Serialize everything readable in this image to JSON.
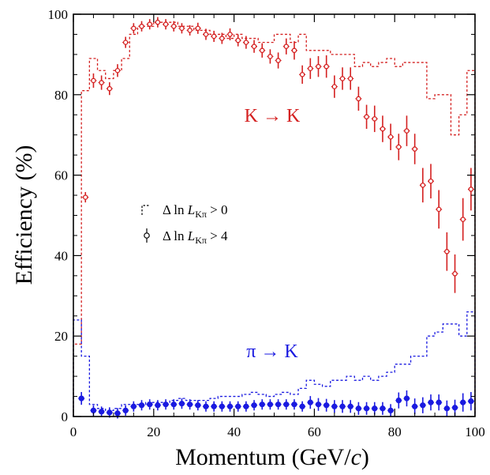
{
  "chart_data": [
    {
      "type": "line",
      "xlabel_main": "Momentum  (GeV/",
      "xlabel_italic": "c",
      "xlabel_end": ")",
      "ylabel": "Efficiency  (%)",
      "xlim": [
        0,
        100
      ],
      "ylim": [
        0,
        100
      ],
      "x_ticks": [
        "0",
        "20",
        "40",
        "60",
        "80",
        "100"
      ],
      "y_ticks": [
        "0",
        "20",
        "40",
        "60",
        "80",
        "100"
      ],
      "annotations": {
        "k_to_k": "K → K",
        "pi_to_k": "π → K"
      },
      "legend": [
        {
          "prefix": "Δ ln ",
          "var": "L",
          "sub": "Kπ",
          "suffix": " > 0",
          "style": "dashed-histogram"
        },
        {
          "prefix": "Δ ln ",
          "var": "L",
          "sub": "Kπ",
          "suffix": " > 4",
          "style": "points-with-errors"
        }
      ],
      "colors": {
        "k_to_k": "#d42020",
        "pi_to_k": "#1a1ae0"
      },
      "bin_edges": [
        0,
        2,
        4,
        6,
        8,
        10,
        12,
        14,
        16,
        18,
        20,
        22,
        24,
        26,
        28,
        30,
        32,
        34,
        36,
        38,
        40,
        42,
        44,
        46,
        48,
        50,
        52,
        54,
        56,
        58,
        60,
        62,
        64,
        66,
        68,
        70,
        72,
        74,
        76,
        78,
        80,
        82,
        84,
        86,
        88,
        90,
        92,
        94,
        96,
        98,
        100
      ],
      "series": [
        {
          "key": "k_to_k_hist",
          "style": "dashed-histogram",
          "color": "#d42020",
          "values": [
            18,
            81,
            89,
            86,
            84,
            86,
            89,
            95,
            97,
            97,
            98,
            98,
            98,
            97,
            97,
            96,
            96,
            95,
            95,
            94,
            95,
            94,
            94,
            93,
            93,
            95,
            95,
            93,
            95,
            91,
            91,
            91,
            90,
            90,
            90,
            87,
            88,
            87,
            88,
            89,
            87,
            88,
            88,
            88,
            79,
            80,
            80,
            70,
            75,
            86
          ]
        },
        {
          "key": "k_to_k_points",
          "style": "points-with-errors",
          "color": "#d42020",
          "x": [
            3,
            5,
            7,
            9,
            11,
            13,
            15,
            17,
            19,
            21,
            23,
            25,
            27,
            29,
            31,
            33,
            35,
            37,
            39,
            41,
            43,
            45,
            47,
            49,
            51,
            53,
            55,
            57,
            59,
            61,
            63,
            65,
            67,
            69,
            71,
            73,
            75,
            77,
            79,
            81,
            83,
            85,
            87,
            89,
            91,
            93,
            95,
            97,
            99
          ],
          "y": [
            54.5,
            83.5,
            83,
            81.5,
            86,
            93,
            96.5,
            97,
            97.5,
            98,
            97.5,
            97,
            96.5,
            96,
            96.5,
            95,
            94.5,
            94,
            95,
            93.5,
            93,
            92,
            91,
            89.5,
            88.5,
            92,
            91,
            85,
            86.5,
            87,
            87,
            82,
            84,
            84,
            79,
            74.5,
            74,
            71.5,
            69.5,
            67,
            71,
            66.5,
            57.5,
            58.5,
            51.5,
            41,
            35.5,
            49,
            56.5
          ],
          "yerr": [
            0.5,
            1.0,
            1.0,
            0.8,
            0.8,
            0.6,
            0.5,
            0.5,
            0.5,
            0.5,
            0.5,
            0.5,
            0.5,
            0.5,
            0.6,
            0.6,
            0.6,
            0.6,
            0.7,
            0.7,
            0.8,
            0.8,
            1.0,
            1.0,
            1.2,
            1.2,
            1.5,
            1.5,
            1.8,
            1.8,
            2.0,
            2.0,
            2.0,
            2.0,
            2.2,
            2.2,
            2.5,
            2.5,
            2.5,
            2.5,
            3.0,
            3.0,
            3.5,
            3.5,
            4.0,
            4.0,
            4.0,
            4.5,
            4.5
          ]
        },
        {
          "key": "pi_to_k_hist",
          "style": "dashed-histogram",
          "color": "#1a1ae0",
          "values": [
            24,
            15,
            3,
            2,
            1.5,
            2,
            3,
            3,
            3,
            3.5,
            3.5,
            3.5,
            4,
            4.5,
            4,
            4,
            4,
            4.5,
            5,
            5,
            5,
            5.5,
            6,
            5.5,
            5,
            5.5,
            6,
            5.5,
            7,
            9,
            8,
            7.5,
            9,
            9,
            10,
            9,
            10,
            9,
            10,
            11,
            13,
            13,
            15,
            15,
            20,
            21,
            23,
            23,
            20,
            26
          ]
        },
        {
          "key": "pi_to_k_points",
          "style": "points-with-errors",
          "color": "#1a1ae0",
          "x": [
            2,
            5,
            7,
            9,
            11,
            13,
            15,
            17,
            19,
            21,
            23,
            25,
            27,
            29,
            31,
            33,
            35,
            37,
            39,
            41,
            43,
            45,
            47,
            49,
            51,
            53,
            55,
            57,
            59,
            61,
            63,
            65,
            67,
            69,
            71,
            73,
            75,
            77,
            79,
            81,
            83,
            85,
            87,
            89,
            91,
            93,
            95,
            97,
            99
          ],
          "y": [
            4.5,
            1.5,
            1.2,
            1,
            0.8,
            1.5,
            2.5,
            2.8,
            3,
            2.8,
            3,
            3,
            3.2,
            3,
            2.8,
            2.5,
            2.5,
            2.5,
            2.5,
            2.5,
            2.5,
            2.8,
            3,
            3,
            3,
            3,
            3,
            2.5,
            3.5,
            3,
            2.8,
            2.5,
            2.5,
            2.5,
            2,
            2,
            2,
            2,
            1.5,
            4,
            4.5,
            2.5,
            2.8,
            3.5,
            3.5,
            2,
            2.2,
            3.5,
            3.8
          ],
          "yerr": [
            0.8,
            0.5,
            0.5,
            0.5,
            0.5,
            0.5,
            0.5,
            0.5,
            0.5,
            0.5,
            0.5,
            0.5,
            0.5,
            0.5,
            0.5,
            0.5,
            0.5,
            0.5,
            0.5,
            0.5,
            0.5,
            0.5,
            0.5,
            0.5,
            0.5,
            0.5,
            0.5,
            0.5,
            0.8,
            0.8,
            0.8,
            0.8,
            0.8,
            0.8,
            0.8,
            0.8,
            0.8,
            0.8,
            0.8,
            1.2,
            1.2,
            1.2,
            1.2,
            1.2,
            1.2,
            1.2,
            1.2,
            1.5,
            1.5
          ]
        }
      ]
    }
  ]
}
